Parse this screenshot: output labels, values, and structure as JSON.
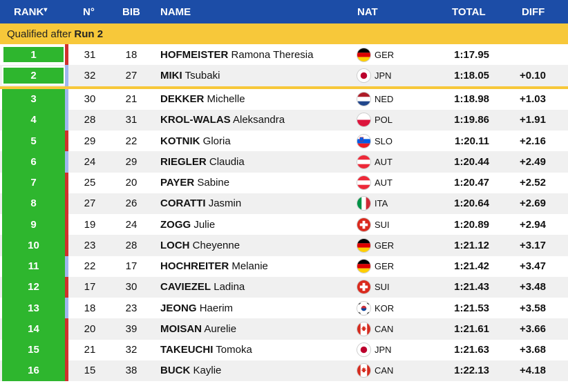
{
  "header": {
    "rank": "RANK",
    "rank_sort_icon": "▾",
    "no": "N°",
    "bib": "BIB",
    "name": "NAME",
    "nat": "NAT",
    "total": "TOTAL",
    "diff": "DIFF"
  },
  "qualified": {
    "prefix": "Qualified after",
    "run": "Run 2"
  },
  "colors": {
    "header": "#1c4da7",
    "gold": "#f7c83a",
    "green": "#2eb62e",
    "red_bar": "#d0312d",
    "blue_bar": "#9fb6ef"
  },
  "rows": [
    {
      "rank": "1",
      "no": "31",
      "bib": "18",
      "last": "HOFMEISTER",
      "first": "Ramona Theresia",
      "nat": "GER",
      "total": "1:17.95",
      "diff": "",
      "bar": "red"
    },
    {
      "rank": "2",
      "no": "32",
      "bib": "27",
      "last": "MIKI",
      "first": "Tsubaki",
      "nat": "JPN",
      "total": "1:18.05",
      "diff": "+0.10",
      "bar": "blue"
    },
    {
      "rank": "3",
      "no": "30",
      "bib": "21",
      "last": "DEKKER",
      "first": "Michelle",
      "nat": "NED",
      "total": "1:18.98",
      "diff": "+1.03",
      "bar": "blue"
    },
    {
      "rank": "4",
      "no": "28",
      "bib": "31",
      "last": "KROL-WALAS",
      "first": "Aleksandra",
      "nat": "POL",
      "total": "1:19.86",
      "diff": "+1.91",
      "bar": "blue"
    },
    {
      "rank": "5",
      "no": "29",
      "bib": "22",
      "last": "KOTNIK",
      "first": "Gloria",
      "nat": "SLO",
      "total": "1:20.11",
      "diff": "+2.16",
      "bar": "red"
    },
    {
      "rank": "6",
      "no": "24",
      "bib": "29",
      "last": "RIEGLER",
      "first": "Claudia",
      "nat": "AUT",
      "total": "1:20.44",
      "diff": "+2.49",
      "bar": "blue"
    },
    {
      "rank": "7",
      "no": "25",
      "bib": "20",
      "last": "PAYER",
      "first": "Sabine",
      "nat": "AUT",
      "total": "1:20.47",
      "diff": "+2.52",
      "bar": "red"
    },
    {
      "rank": "8",
      "no": "27",
      "bib": "26",
      "last": "CORATTI",
      "first": "Jasmin",
      "nat": "ITA",
      "total": "1:20.64",
      "diff": "+2.69",
      "bar": "red"
    },
    {
      "rank": "9",
      "no": "19",
      "bib": "24",
      "last": "ZOGG",
      "first": "Julie",
      "nat": "SUI",
      "total": "1:20.89",
      "diff": "+2.94",
      "bar": "red"
    },
    {
      "rank": "10",
      "no": "23",
      "bib": "28",
      "last": "LOCH",
      "first": "Cheyenne",
      "nat": "GER",
      "total": "1:21.12",
      "diff": "+3.17",
      "bar": "red"
    },
    {
      "rank": "11",
      "no": "22",
      "bib": "17",
      "last": "HOCHREITER",
      "first": "Melanie",
      "nat": "GER",
      "total": "1:21.42",
      "diff": "+3.47",
      "bar": "blue"
    },
    {
      "rank": "12",
      "no": "17",
      "bib": "30",
      "last": "CAVIEZEL",
      "first": "Ladina",
      "nat": "SUI",
      "total": "1:21.43",
      "diff": "+3.48",
      "bar": "red"
    },
    {
      "rank": "13",
      "no": "18",
      "bib": "23",
      "last": "JEONG",
      "first": "Haerim",
      "nat": "KOR",
      "total": "1:21.53",
      "diff": "+3.58",
      "bar": "blue"
    },
    {
      "rank": "14",
      "no": "20",
      "bib": "39",
      "last": "MOISAN",
      "first": "Aurelie",
      "nat": "CAN",
      "total": "1:21.61",
      "diff": "+3.66",
      "bar": "red"
    },
    {
      "rank": "15",
      "no": "21",
      "bib": "32",
      "last": "TAKEUCHI",
      "first": "Tomoka",
      "nat": "JPN",
      "total": "1:21.63",
      "diff": "+3.68",
      "bar": "red"
    },
    {
      "rank": "16",
      "no": "15",
      "bib": "38",
      "last": "BUCK",
      "first": "Kaylie",
      "nat": "CAN",
      "total": "1:22.13",
      "diff": "+4.18",
      "bar": "red"
    }
  ]
}
